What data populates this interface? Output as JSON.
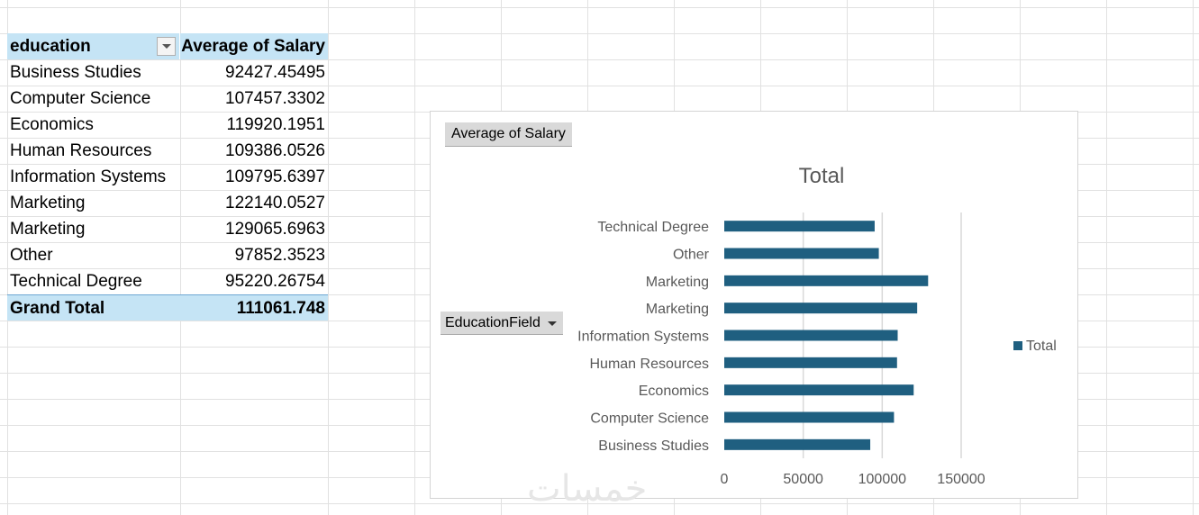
{
  "pivot": {
    "header": {
      "field": "education",
      "value": "Average of Salary"
    },
    "rows": [
      {
        "label": "Business Studies",
        "value": "92427.45495"
      },
      {
        "label": "Computer Science",
        "value": "107457.3302"
      },
      {
        "label": "Economics",
        "value": "119920.1951"
      },
      {
        "label": "Human Resources",
        "value": "109386.0526"
      },
      {
        "label": "Information Systems",
        "value": "109795.6397"
      },
      {
        "label": "Marketing",
        "value": "122140.0527"
      },
      {
        "label": "Marketing",
        "value": "129065.6963"
      },
      {
        "label": "Other",
        "value": "97852.3523"
      },
      {
        "label": "Technical Degree",
        "value": "95220.26754"
      }
    ],
    "grand_total": {
      "label": "Grand Total",
      "value": "111061.748"
    }
  },
  "chart": {
    "value_field_button": "Average of Salary",
    "axis_field_button": "EducationField",
    "legend_label": "Total",
    "bar_color": "#1f5f80"
  },
  "chart_data": {
    "type": "bar",
    "orientation": "horizontal",
    "title": "Total",
    "categories": [
      "Business Studies",
      "Computer Science",
      "Economics",
      "Human Resources",
      "Information Systems",
      "Marketing",
      "Marketing",
      "Other",
      "Technical Degree"
    ],
    "series": [
      {
        "name": "Total",
        "values": [
          92427.45495,
          107457.3302,
          119920.1951,
          109386.0526,
          109795.6397,
          122140.0527,
          129065.6963,
          97852.3523,
          95220.26754
        ]
      }
    ],
    "xlim": [
      0,
      150000
    ],
    "xticks": [
      "0",
      "50000",
      "100000",
      "150000"
    ],
    "xtick_values": [
      0,
      50000,
      100000,
      150000
    ],
    "grid": true,
    "legend_position": "right"
  },
  "watermark": "خمسات"
}
